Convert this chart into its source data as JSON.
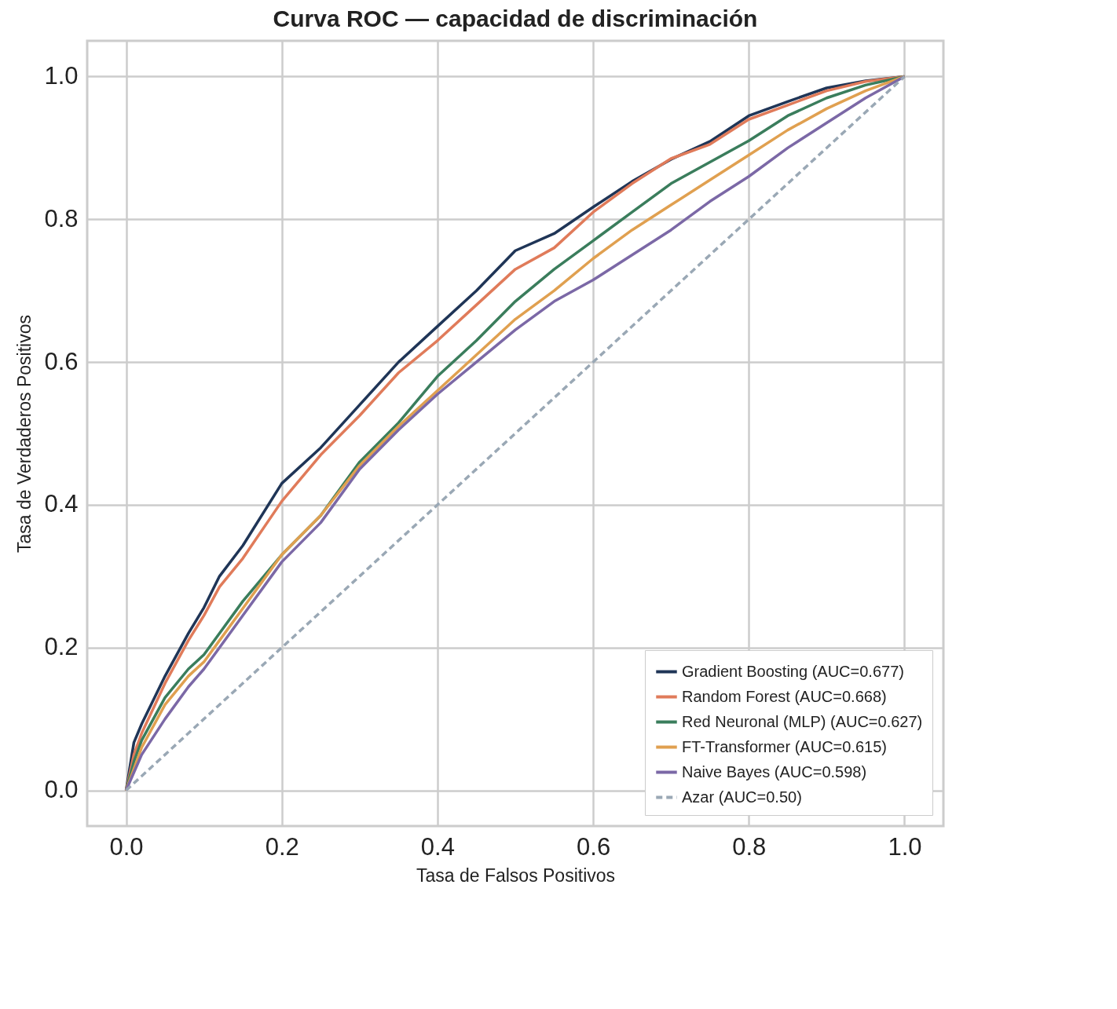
{
  "chart_data": {
    "type": "line",
    "title": "Curva ROC — capacidad de discriminación",
    "xlabel": "Tasa de Falsos Positivos",
    "ylabel": "Tasa de Verdaderos Positivos",
    "xlim": [
      -0.05,
      1.05
    ],
    "ylim": [
      -0.05,
      1.05
    ],
    "xticks": [
      {
        "value": 0,
        "label": "0.0"
      },
      0.2,
      0.4,
      0.6,
      0.8,
      {
        "value": 1,
        "label": "1.0"
      }
    ],
    "yticks": [
      {
        "value": 0,
        "label": "0.0"
      },
      0.2,
      0.4,
      0.6,
      0.8,
      {
        "value": 1,
        "label": "1.0"
      }
    ],
    "grid": true,
    "legend": "bottom right",
    "line_style": "solid",
    "x": [
      0,
      0.01,
      0.02,
      0.05,
      0.08,
      0.1,
      0.12,
      0.15,
      0.2,
      0.25,
      0.3,
      0.35,
      0.4,
      0.45,
      0.5,
      0.55,
      0.6,
      0.65,
      0.7,
      0.75,
      0.8,
      0.85,
      0.9,
      0.95,
      1
    ],
    "series": [
      {
        "name": "Gradient Boosting (AUC=0.677)",
        "color": "#1f3557",
        "values": [
          0,
          0.067,
          0.093,
          0.16,
          0.22,
          0.256,
          0.3,
          0.343,
          0.43,
          0.48,
          0.54,
          0.6,
          0.65,
          0.7,
          0.756,
          0.78,
          0.817,
          0.853,
          0.884,
          0.909,
          0.945,
          0.965,
          0.984,
          0.994,
          1
        ]
      },
      {
        "name": "Random Forest (AUC=0.668)",
        "color": "#e07b5a",
        "values": [
          0,
          0.05,
          0.08,
          0.15,
          0.21,
          0.245,
          0.285,
          0.325,
          0.405,
          0.47,
          0.525,
          0.585,
          0.63,
          0.68,
          0.73,
          0.76,
          0.81,
          0.85,
          0.885,
          0.905,
          0.94,
          0.96,
          0.98,
          0.993,
          1
        ]
      },
      {
        "name": "Red Neuronal (MLP) (AUC=0.627)",
        "color": "#3a7d5c",
        "values": [
          0,
          0.04,
          0.07,
          0.13,
          0.17,
          0.19,
          0.22,
          0.265,
          0.33,
          0.385,
          0.46,
          0.515,
          0.58,
          0.63,
          0.685,
          0.73,
          0.77,
          0.81,
          0.85,
          0.88,
          0.91,
          0.945,
          0.97,
          0.988,
          1
        ]
      },
      {
        "name": "FT-Transformer (AUC=0.615)",
        "color": "#e0a050",
        "values": [
          0,
          0.03,
          0.06,
          0.12,
          0.16,
          0.18,
          0.21,
          0.255,
          0.33,
          0.385,
          0.455,
          0.51,
          0.56,
          0.61,
          0.66,
          0.7,
          0.745,
          0.785,
          0.82,
          0.855,
          0.89,
          0.925,
          0.955,
          0.98,
          1
        ]
      },
      {
        "name": "Naive Bayes (AUC=0.598)",
        "color": "#7b68a6",
        "values": [
          0,
          0.025,
          0.05,
          0.1,
          0.145,
          0.17,
          0.2,
          0.245,
          0.32,
          0.375,
          0.45,
          0.505,
          0.555,
          0.6,
          0.645,
          0.685,
          0.715,
          0.75,
          0.785,
          0.825,
          0.86,
          0.9,
          0.935,
          0.97,
          1
        ]
      },
      {
        "name": "Azar (AUC=0.50)",
        "color": "#9aa8b5",
        "line_style": "dashed",
        "x": [
          0,
          1
        ],
        "values": [
          0,
          1
        ]
      }
    ]
  }
}
